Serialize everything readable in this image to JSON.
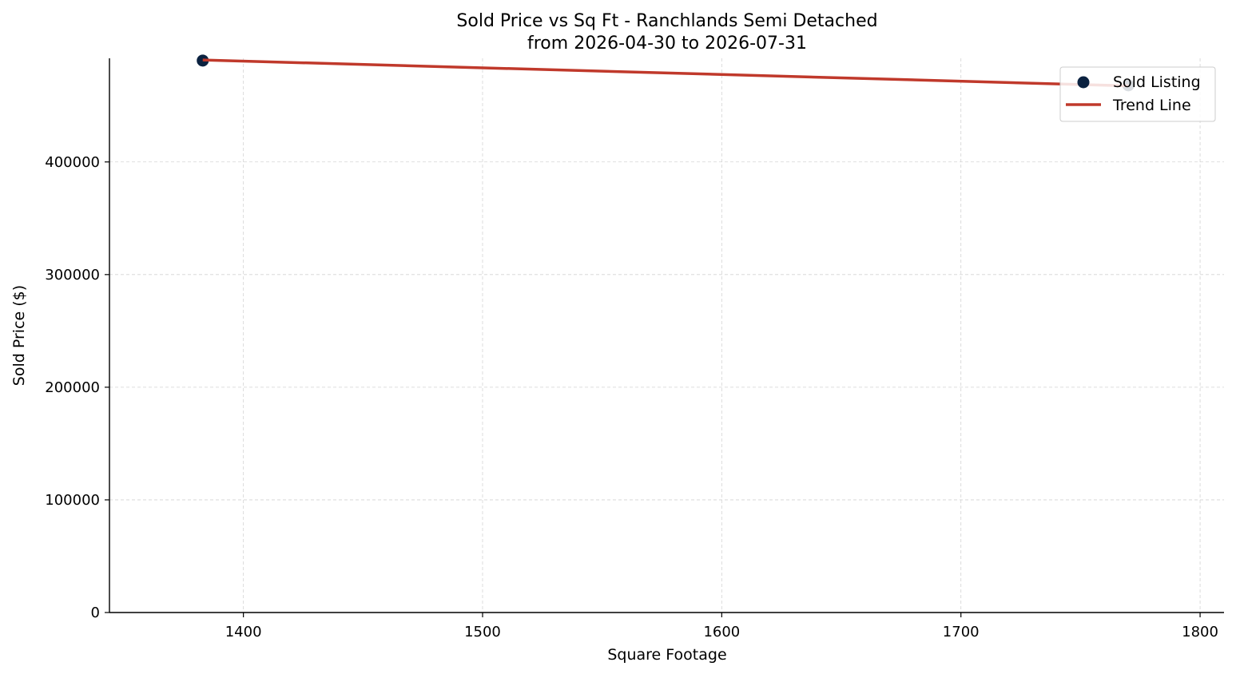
{
  "chart_data": {
    "type": "scatter",
    "title": "Sold Price vs Sq Ft - Ranchlands Semi Detached",
    "subtitle": "from 2026-04-30 to 2026-07-31",
    "xlabel": "Square Footage",
    "ylabel": "Sold Price ($)",
    "xlim": [
      1344,
      1810
    ],
    "ylim": [
      0,
      492000
    ],
    "x_ticks": [
      1400,
      1500,
      1600,
      1700,
      1800
    ],
    "x_tick_labels": [
      "1400",
      "1500",
      "1600",
      "1700",
      "1800"
    ],
    "y_ticks": [
      0,
      100000,
      200000,
      300000,
      400000
    ],
    "y_tick_labels": [
      "0",
      "100000",
      "200000",
      "300000",
      "400000"
    ],
    "grid": true,
    "legend_position": "top-right",
    "series": [
      {
        "name": "Sold Listing",
        "kind": "scatter",
        "color": "#0b2240",
        "points": [
          {
            "x": 1383,
            "y": 490000
          },
          {
            "x": 1770,
            "y": 468000
          }
        ]
      },
      {
        "name": "Trend Line",
        "kind": "line",
        "color": "#c0392b",
        "points": [
          {
            "x": 1383,
            "y": 490500
          },
          {
            "x": 1770,
            "y": 467500
          }
        ]
      }
    ]
  }
}
